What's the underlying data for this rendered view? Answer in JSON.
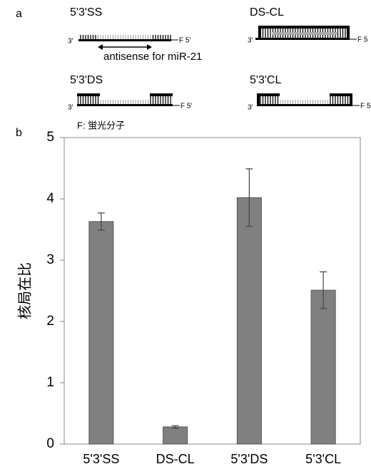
{
  "panel_a": {
    "label": "a",
    "diagrams": [
      {
        "name": "5'3'SS",
        "left_end": "3′",
        "right_end": "F 5′"
      },
      {
        "name": "DS-CL",
        "left_end": "3′",
        "right_end": "F 5"
      },
      {
        "name": "5'3'DS",
        "left_end": "3′",
        "right_end": "F 5′"
      },
      {
        "name": "5'3'CL",
        "left_end": "3′",
        "right_end": "F 5′"
      }
    ],
    "annotation": "antisense for miR-21",
    "legend": "F: 蛍光分子"
  },
  "chart_data": {
    "type": "bar",
    "panel_label": "b",
    "y_label": "核局在比",
    "categories": [
      "5'3'SS",
      "DS-CL",
      "5'3'DS",
      "5'3'CL"
    ],
    "values": [
      3.63,
      0.28,
      4.02,
      2.51
    ],
    "errors": [
      0.14,
      0.02,
      0.47,
      0.3
    ],
    "color": "#808080",
    "ylim": [
      0,
      5
    ],
    "yticks": [
      0,
      1,
      2,
      3,
      4,
      5
    ]
  }
}
